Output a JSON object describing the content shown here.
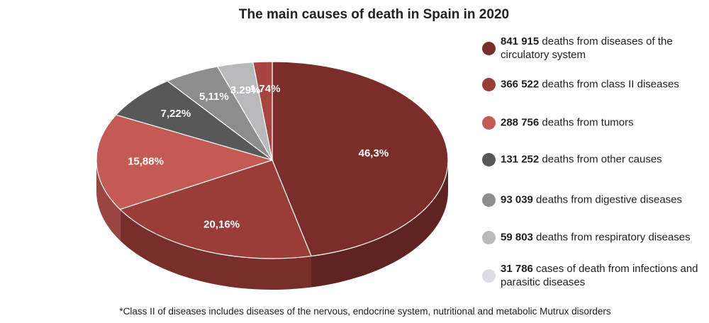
{
  "chart_data": {
    "type": "pie",
    "title": "The main causes of death in Spain in 2020",
    "slices": [
      {
        "label": "46,3%",
        "value": 46.3,
        "color": "#7a2d2a"
      },
      {
        "label": "20,16%",
        "value": 20.16,
        "color": "#9a3c38"
      },
      {
        "label": "15,88%",
        "value": 15.88,
        "color": "#c45a54"
      },
      {
        "label": "7,22%",
        "value": 7.22,
        "color": "#585858"
      },
      {
        "label": "5,11%",
        "value": 5.11,
        "color": "#8d8d8d"
      },
      {
        "label": "3.29%",
        "value": 3.29,
        "color": "#b9b9bb"
      },
      {
        "label": "1.74%",
        "value": 1.74,
        "color": "#a64440"
      }
    ],
    "legend": [
      {
        "number": "841 915",
        "text": " deaths from diseases of the circulatory system",
        "color": "#7a2d2a"
      },
      {
        "number": "366 522",
        "text": " deaths from class II diseases",
        "color": "#9a3c38"
      },
      {
        "number": "288 756",
        "text": " deaths from tumors",
        "color": "#c45a54"
      },
      {
        "number": "131 252",
        "text": " deaths from other causes",
        "color": "#585858"
      },
      {
        "number": "93 039",
        "text": " deaths from digestive diseases",
        "color": "#8d8d8d"
      },
      {
        "number": "59 803",
        "text": " deaths from respiratory diseases",
        "color": "#b9b9bb"
      },
      {
        "number": "31 786",
        "text": " cases of death from infections and parasitic diseases",
        "color": "#dcdde3"
      }
    ]
  },
  "footnote": "*Class II of diseases includes diseases of the nervous, endocrine system, nutritional and metabolic Mutrux disorders"
}
